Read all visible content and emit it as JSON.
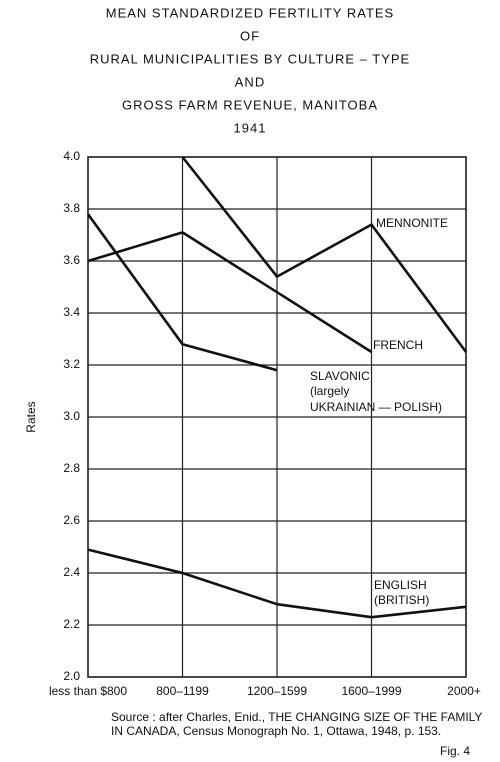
{
  "chart_data": {
    "type": "line",
    "title": [
      "MEAN STANDARDIZED FERTILITY RATES",
      "OF",
      "RURAL MUNICIPALITIES BY CULTURE – TYPE",
      "AND",
      "GROSS FARM REVENUE, MANITOBA",
      "1941"
    ],
    "y_label": "Rates",
    "categories": [
      "less than $800",
      "800–1199",
      "1200–1599",
      "1600–1999",
      "2000+"
    ],
    "series": [
      {
        "name": "MENNONITE",
        "color": "#111111",
        "values": [
          null,
          4.0,
          3.54,
          3.74,
          3.25
        ]
      },
      {
        "name": "FRENCH",
        "color": "#111111",
        "values": [
          3.6,
          3.71,
          3.48,
          3.25,
          null
        ]
      },
      {
        "name": "SLAVONIC",
        "name_lines": [
          "(largely",
          "UKRAINIAN — POLISH)"
        ],
        "color": "#111111",
        "values": [
          3.78,
          3.28,
          3.18,
          null,
          null
        ]
      },
      {
        "name": "ENGLISH",
        "name_lines": [
          "(BRITISH)"
        ],
        "color": "#111111",
        "values": [
          2.49,
          2.4,
          2.28,
          2.23,
          2.27
        ]
      }
    ],
    "ylim": [
      2.0,
      4.0
    ],
    "yticks": [
      {
        "value": 2,
        "label": "2.0"
      },
      {
        "value": 2.2,
        "label": "2.2"
      },
      {
        "value": 2.4,
        "label": "2.4"
      },
      {
        "value": 2.6,
        "label": "2.6"
      },
      {
        "value": 2.8,
        "label": "2.8"
      },
      {
        "value": 3,
        "label": "3.0"
      },
      {
        "value": 3.2,
        "label": "3.2"
      },
      {
        "value": 3.4,
        "label": "3.4"
      },
      {
        "value": 3.6,
        "label": "3.6"
      },
      {
        "value": 3.8,
        "label": "3.8"
      },
      {
        "value": 4,
        "label": "4.0"
      }
    ],
    "grid": true,
    "source": [
      "Source : after Charles, Enid., THE CHANGING SIZE OF THE FAMILY",
      "IN CANADA, Census Monograph No. 1, Ottawa, 1948, p. 153."
    ],
    "figure_label": "Fig. 4"
  }
}
